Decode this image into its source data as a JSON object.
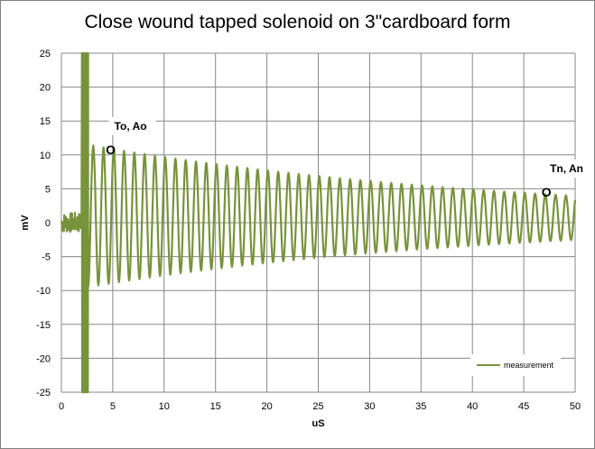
{
  "chart_data": {
    "type": "line",
    "title": "Close wound tapped solenoid on 3\"cardboard form",
    "xlabel": "uS",
    "ylabel": "mV",
    "xlim": [
      0,
      50
    ],
    "ylim": [
      -25,
      25
    ],
    "x_ticks": [
      "0",
      "5",
      "10",
      "15",
      "20",
      "25",
      "30",
      "35",
      "40",
      "45",
      "50"
    ],
    "y_ticks": [
      "25",
      "20",
      "15",
      "10",
      "5",
      "0",
      "-5",
      "-10",
      "-15",
      "-20",
      "-25"
    ],
    "grid": true,
    "legend_position": "bottom-right",
    "series": [
      {
        "name": "measurement",
        "color": "#77933c",
        "description_values": {
          "noise_segment": {
            "x": [
              0,
              2
            ],
            "amplitude": 1.5
          },
          "impulse_segment": {
            "x": [
              2,
              2.6
            ],
            "peak": 25,
            "trough": -25
          },
          "ringing": {
            "start_x": 2.6,
            "end_x": 50,
            "period": 1.0,
            "first_peak": 11.5,
            "first_trough": -9.5,
            "last_peak": 4.0,
            "last_trough": -2.5,
            "center_start": 1.0,
            "center_end": 0.7
          }
        }
      }
    ],
    "annotations": [
      {
        "label": "To, Ao",
        "marker": "O",
        "x": 4.8,
        "y": 10.8
      },
      {
        "label": "Tn, An",
        "marker": "O",
        "x": 47.2,
        "y": 4.5
      }
    ]
  }
}
